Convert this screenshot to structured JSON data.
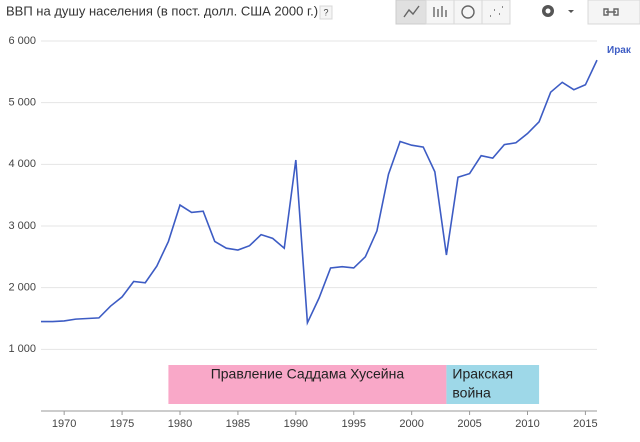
{
  "chart_data": {
    "type": "line",
    "title": "ВВП на душу населения (в пост. долл. США 2000 г.)",
    "x": [
      1968,
      1969,
      1970,
      1971,
      1972,
      1973,
      1974,
      1975,
      1976,
      1977,
      1978,
      1979,
      1980,
      1981,
      1982,
      1983,
      1984,
      1985,
      1986,
      1987,
      1988,
      1989,
      1990,
      1991,
      1992,
      1993,
      1994,
      1995,
      1996,
      1997,
      1998,
      1999,
      2000,
      2001,
      2002,
      2003,
      2004,
      2005,
      2006,
      2007,
      2008,
      2009,
      2010,
      2011,
      2012,
      2013,
      2014,
      2015,
      2016
    ],
    "series": [
      {
        "name": "Ирак",
        "color": "#3d5cc4",
        "values": [
          1450,
          1450,
          1460,
          1490,
          1500,
          1510,
          1700,
          1850,
          2100,
          2080,
          2350,
          2750,
          3340,
          3220,
          3240,
          2750,
          2640,
          2610,
          2680,
          2860,
          2800,
          2640,
          4070,
          1430,
          1830,
          2320,
          2340,
          2320,
          2500,
          2920,
          3840,
          4370,
          4310,
          4280,
          3880,
          2530,
          3790,
          3850,
          4140,
          4100,
          4320,
          4350,
          4500,
          4690,
          5170,
          5330,
          5210,
          5290,
          5690
        ]
      }
    ],
    "xlim": [
      1968,
      2016
    ],
    "xticks": [
      1970,
      1975,
      1980,
      1985,
      1990,
      1995,
      2000,
      2005,
      2010,
      2015
    ],
    "ylim": [
      0,
      6000
    ],
    "yticks": [
      {
        "value": 1000,
        "label": "1 000"
      },
      {
        "value": 2000,
        "label": "2 000"
      },
      {
        "value": 3000,
        "label": "3 000"
      },
      {
        "value": 4000,
        "label": "4 000"
      },
      {
        "value": 5000,
        "label": "5 000"
      },
      {
        "value": 6000,
        "label": "6 000"
      }
    ],
    "grid": true,
    "spans": [
      {
        "label": "Правление Саддама Хусейна",
        "start": 1979,
        "end": 2003,
        "color": "#f9a8c8"
      },
      {
        "label": [
          "Иракская",
          "война"
        ],
        "start": 2003,
        "end": 2011,
        "color": "#9ed8e8"
      }
    ]
  }
}
